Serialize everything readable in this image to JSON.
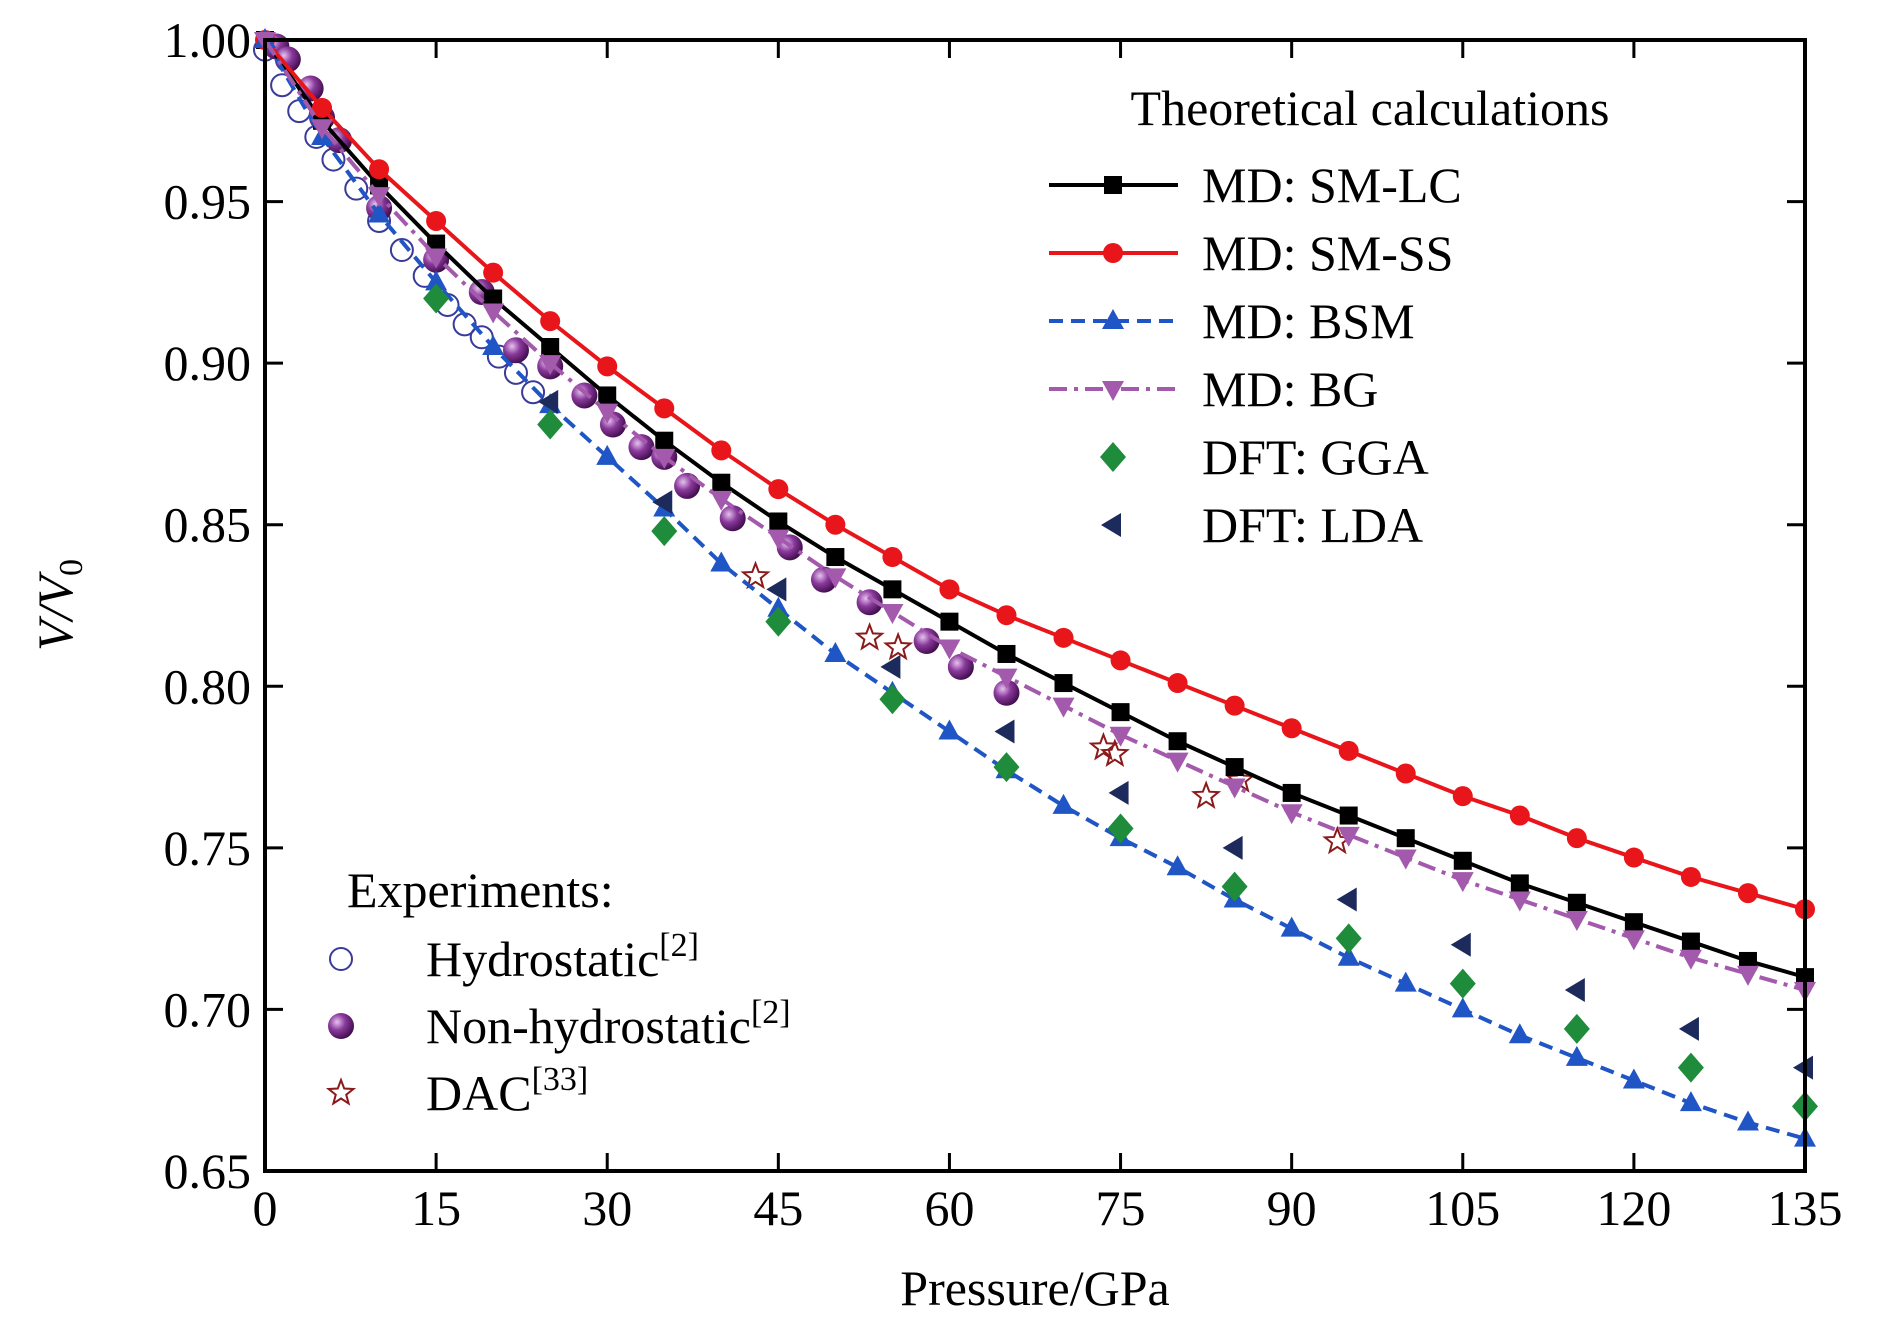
{
  "chart_data": {
    "type": "line",
    "xlabel": "Pressure/GPa",
    "ylabel": {
      "main": "V/V",
      "subscript": "0"
    },
    "xlim": [
      0,
      135
    ],
    "ylim": [
      0.65,
      1.0
    ],
    "xticks": [
      0,
      15,
      30,
      45,
      60,
      75,
      90,
      105,
      120,
      135
    ],
    "yticks": [
      0.65,
      {
        "value": 0.7,
        "label": "0.70"
      },
      0.75,
      {
        "value": 0.8,
        "label": "0.80"
      },
      0.85,
      {
        "value": 0.9,
        "label": "0.90"
      },
      0.95,
      {
        "value": 1.0,
        "label": "1.00"
      }
    ],
    "legend_title": "Theoretical calculations",
    "x": [
      0,
      5,
      10,
      15,
      20,
      25,
      30,
      35,
      40,
      45,
      50,
      55,
      60,
      65,
      70,
      75,
      80,
      85,
      90,
      95,
      100,
      105,
      110,
      115,
      120,
      125,
      130,
      135
    ],
    "series": [
      {
        "name": "MD: SM-LC",
        "color": "#000000",
        "marker": "square",
        "linestyle": "solid",
        "values": [
          1.0,
          0.975,
          0.955,
          0.937,
          0.92,
          0.905,
          0.89,
          0.876,
          0.863,
          0.851,
          0.84,
          0.83,
          0.82,
          0.81,
          0.801,
          0.792,
          0.783,
          0.775,
          0.767,
          0.76,
          0.753,
          0.746,
          0.739,
          0.733,
          0.727,
          0.721,
          0.715,
          0.71
        ]
      },
      {
        "name": "MD: SM-SS",
        "color": "#e8161b",
        "marker": "circle",
        "linestyle": "solid",
        "values": [
          1.0,
          0.979,
          0.96,
          0.944,
          0.928,
          0.913,
          0.899,
          0.886,
          0.873,
          0.861,
          0.85,
          0.84,
          0.83,
          0.822,
          0.815,
          0.808,
          0.801,
          0.794,
          0.787,
          0.78,
          0.773,
          0.766,
          0.76,
          0.753,
          0.747,
          0.741,
          0.736,
          0.731
        ]
      },
      {
        "name": "MD: BSM",
        "color": "#1f55c4",
        "marker": "triangle-up",
        "linestyle": "dashed",
        "values": [
          1.0,
          0.97,
          0.946,
          0.925,
          0.905,
          0.887,
          0.871,
          0.855,
          0.838,
          0.824,
          0.81,
          0.798,
          0.786,
          0.774,
          0.763,
          0.753,
          0.744,
          0.734,
          0.725,
          0.716,
          0.708,
          0.7,
          0.692,
          0.685,
          0.678,
          0.671,
          0.665,
          0.66
        ]
      },
      {
        "name": "MD: BG",
        "color": "#a45aac",
        "marker": "triangle-down",
        "linestyle": "dashdot",
        "values": [
          1.0,
          0.973,
          0.952,
          0.933,
          0.916,
          0.9,
          0.885,
          0.871,
          0.858,
          0.846,
          0.834,
          0.823,
          0.812,
          0.803,
          0.794,
          0.785,
          0.777,
          0.769,
          0.761,
          0.754,
          0.747,
          0.74,
          0.734,
          0.728,
          0.722,
          0.716,
          0.711,
          0.706
        ]
      },
      {
        "name": "DFT: GGA",
        "color": "#1e8c3a",
        "marker": "diamond",
        "linestyle": "none",
        "x": [
          15,
          25,
          35,
          45,
          55,
          65,
          75,
          85,
          95,
          105,
          115,
          125,
          135
        ],
        "values": [
          0.92,
          0.881,
          0.848,
          0.82,
          0.796,
          0.775,
          0.756,
          0.738,
          0.722,
          0.708,
          0.694,
          0.682,
          0.67
        ]
      },
      {
        "name": "DFT: LDA",
        "color": "#1c2a5c",
        "marker": "triangle-left",
        "linestyle": "none",
        "x": [
          25,
          35,
          45,
          55,
          65,
          75,
          85,
          95,
          105,
          115,
          125,
          135
        ],
        "values": [
          0.888,
          0.857,
          0.83,
          0.806,
          0.786,
          0.767,
          0.75,
          0.734,
          0.72,
          0.706,
          0.694,
          0.682
        ]
      }
    ],
    "experiment_title": "Experiments:",
    "experiment_series": [
      {
        "name": "Hydrostatic",
        "reference": "[2]",
        "color": "#3a3a9a",
        "marker": "open-circle",
        "x": [
          0,
          1.5,
          3,
          4.5,
          6,
          8,
          10,
          12,
          14,
          16,
          17.5,
          19,
          20.5,
          22,
          23.5
        ],
        "values": [
          0.997,
          0.986,
          0.978,
          0.97,
          0.963,
          0.954,
          0.944,
          0.935,
          0.927,
          0.918,
          0.912,
          0.908,
          0.902,
          0.897,
          0.891
        ]
      },
      {
        "name": "Non-hydrostatic",
        "reference": "[2]",
        "color": "#6a1b7a",
        "marker": "sphere",
        "x": [
          1,
          2,
          4,
          5,
          6.5,
          10,
          15,
          19,
          22,
          25,
          28,
          30.5,
          33,
          35,
          37,
          41,
          46,
          49,
          53,
          58,
          61,
          65
        ],
        "values": [
          0.998,
          0.994,
          0.985,
          0.976,
          0.969,
          0.948,
          0.932,
          0.922,
          0.904,
          0.899,
          0.89,
          0.881,
          0.874,
          0.871,
          0.862,
          0.852,
          0.843,
          0.833,
          0.826,
          0.814,
          0.806,
          0.798
        ]
      },
      {
        "name": "DAC",
        "reference": "[33]",
        "color": "#8b1a1a",
        "marker": "star",
        "x": [
          43,
          53,
          55.5,
          73.5,
          74.5,
          82.5,
          85.5,
          94
        ],
        "values": [
          0.834,
          0.815,
          0.812,
          0.781,
          0.779,
          0.766,
          0.771,
          0.752
        ]
      }
    ]
  }
}
